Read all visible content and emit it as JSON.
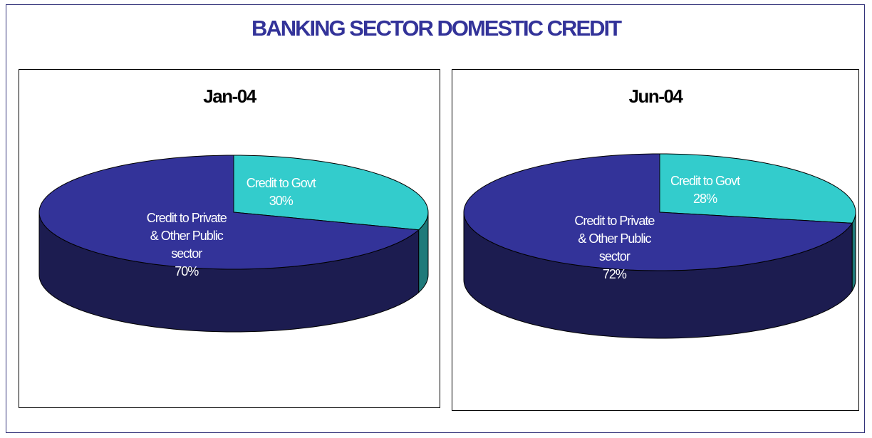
{
  "title": "BANKING SECTOR DOMESTIC CREDIT",
  "chart_data": [
    {
      "type": "pie",
      "title": "Jan-04",
      "categories": [
        "Credit to Govt",
        "Credit to Private & Other Public sector"
      ],
      "values": [
        30,
        70
      ],
      "value_labels": [
        "30%",
        "70%"
      ],
      "colors": [
        "#33cccc",
        "#333399"
      ],
      "side_colors": [
        "#1f7a7a",
        "#1c1c50"
      ]
    },
    {
      "type": "pie",
      "title": "Jun-04",
      "categories": [
        "Credit to Govt",
        "Credit to Private & Other Public sector"
      ],
      "values": [
        28,
        72
      ],
      "value_labels": [
        "28%",
        "72%"
      ],
      "colors": [
        "#33cccc",
        "#333399"
      ],
      "side_colors": [
        "#1f7a7a",
        "#1c1c50"
      ]
    }
  ]
}
